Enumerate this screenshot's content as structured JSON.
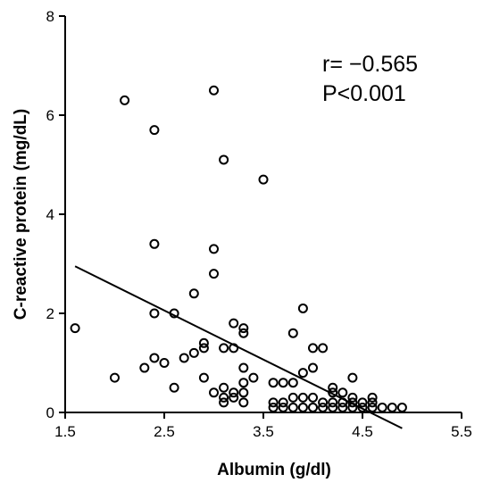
{
  "chart_data": {
    "type": "scatter",
    "title": "",
    "xlabel": "Albumin (g/dl)",
    "ylabel": "C-reactive protein (mg/dL)",
    "xlim": [
      1.5,
      5.5
    ],
    "ylim": [
      0,
      8
    ],
    "xticks": [
      "1.5",
      "2.5",
      "3.5",
      "4.5",
      "5.5"
    ],
    "yticks": [
      "0",
      "2",
      "4",
      "6",
      "8"
    ],
    "grid": false,
    "legend": "none",
    "annotations": [
      "r= −0.565",
      "P<0.001"
    ],
    "regression_line": {
      "x": [
        1.6,
        4.9
      ],
      "y": [
        2.95,
        -0.32
      ]
    },
    "points": [
      [
        1.6,
        1.7
      ],
      [
        2.0,
        0.7
      ],
      [
        2.1,
        6.3
      ],
      [
        2.3,
        0.9
      ],
      [
        2.4,
        5.7
      ],
      [
        2.4,
        3.4
      ],
      [
        2.4,
        2.0
      ],
      [
        2.4,
        1.1
      ],
      [
        2.5,
        1.0
      ],
      [
        2.6,
        2.0
      ],
      [
        2.6,
        0.5
      ],
      [
        2.7,
        1.1
      ],
      [
        2.8,
        2.4
      ],
      [
        2.8,
        1.2
      ],
      [
        2.9,
        1.4
      ],
      [
        2.9,
        1.3
      ],
      [
        2.9,
        0.7
      ],
      [
        3.0,
        6.5
      ],
      [
        3.0,
        3.3
      ],
      [
        3.0,
        2.8
      ],
      [
        3.0,
        0.4
      ],
      [
        3.1,
        5.1
      ],
      [
        3.1,
        1.3
      ],
      [
        3.1,
        0.5
      ],
      [
        3.1,
        0.3
      ],
      [
        3.1,
        0.2
      ],
      [
        3.2,
        1.8
      ],
      [
        3.2,
        1.3
      ],
      [
        3.2,
        0.4
      ],
      [
        3.2,
        0.3
      ],
      [
        3.3,
        1.7
      ],
      [
        3.3,
        1.6
      ],
      [
        3.3,
        0.9
      ],
      [
        3.3,
        0.6
      ],
      [
        3.3,
        0.4
      ],
      [
        3.3,
        0.2
      ],
      [
        3.4,
        0.7
      ],
      [
        3.5,
        4.7
      ],
      [
        3.6,
        0.6
      ],
      [
        3.6,
        0.2
      ],
      [
        3.6,
        0.1
      ],
      [
        3.7,
        0.6
      ],
      [
        3.7,
        0.2
      ],
      [
        3.7,
        0.1
      ],
      [
        3.8,
        1.6
      ],
      [
        3.8,
        0.6
      ],
      [
        3.8,
        0.3
      ],
      [
        3.8,
        0.1
      ],
      [
        3.9,
        2.1
      ],
      [
        3.9,
        0.8
      ],
      [
        3.9,
        0.3
      ],
      [
        3.9,
        0.1
      ],
      [
        4.0,
        1.3
      ],
      [
        4.0,
        0.9
      ],
      [
        4.0,
        0.3
      ],
      [
        4.0,
        0.1
      ],
      [
        4.1,
        1.3
      ],
      [
        4.1,
        0.2
      ],
      [
        4.1,
        0.1
      ],
      [
        4.2,
        0.5
      ],
      [
        4.2,
        0.4
      ],
      [
        4.2,
        0.2
      ],
      [
        4.2,
        0.1
      ],
      [
        4.3,
        0.4
      ],
      [
        4.3,
        0.2
      ],
      [
        4.3,
        0.1
      ],
      [
        4.4,
        0.7
      ],
      [
        4.4,
        0.3
      ],
      [
        4.4,
        0.2
      ],
      [
        4.4,
        0.1
      ],
      [
        4.5,
        0.2
      ],
      [
        4.5,
        0.1
      ],
      [
        4.6,
        0.3
      ],
      [
        4.6,
        0.2
      ],
      [
        4.6,
        0.1
      ],
      [
        4.7,
        0.1
      ],
      [
        4.8,
        0.1
      ],
      [
        4.9,
        0.1
      ]
    ]
  }
}
